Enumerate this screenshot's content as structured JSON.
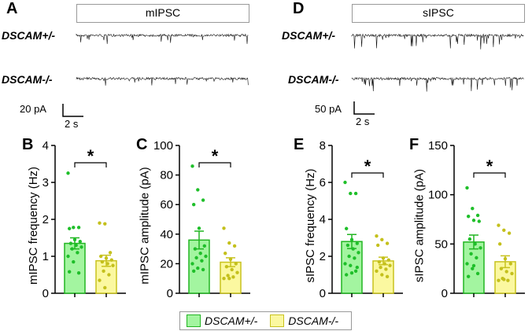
{
  "panels": {
    "A": "A",
    "D": "D",
    "B": "B",
    "C": "C",
    "E": "E",
    "F": "F"
  },
  "traces": {
    "left_title": "mIPSC",
    "right_title": "sIPSC",
    "genotype_het": "DSCAM+/-",
    "genotype_ko": "DSCAM-/-",
    "left_scale_y": "20 pA",
    "left_scale_x": "2 s",
    "right_scale_y": "50 pA",
    "right_scale_x": "2 s"
  },
  "colors": {
    "het_fill": "#a3f5a0",
    "het_stroke": "#22b522",
    "het_dot": "#1fbf2a",
    "ko_fill": "#fbf8a0",
    "ko_stroke": "#c8c21e",
    "ko_dot": "#c4c01c"
  },
  "legend": {
    "items": [
      {
        "label": "DSCAM+/-",
        "color": "#a3f5a0"
      },
      {
        "label": "DSCAM-/-",
        "color": "#fbf8a0"
      }
    ]
  },
  "chart_data": [
    {
      "type": "bar",
      "panel": "B",
      "ylabel": "mIPSC frequency (Hz)",
      "ylim": [
        0,
        4
      ],
      "ticks": [
        "0",
        "1",
        "2",
        "3",
        "4"
      ],
      "significance": "*",
      "series": [
        {
          "name": "DSCAM+/-",
          "mean": 1.35,
          "sem": 0.15,
          "points": [
            3.25,
            1.78,
            1.78,
            1.75,
            1.45,
            1.4,
            1.35,
            1.3,
            1.25,
            1.2,
            1.1,
            1.0,
            0.85,
            0.55,
            0.58
          ]
        },
        {
          "name": "DSCAM-/-",
          "mean": 0.88,
          "sem": 0.15,
          "points": [
            1.9,
            1.88,
            1.1,
            1.0,
            0.95,
            0.9,
            0.85,
            0.8,
            0.75,
            0.6,
            0.5,
            0.35,
            0.15
          ]
        }
      ]
    },
    {
      "type": "bar",
      "panel": "C",
      "ylabel": "mIPSC amplitude (pA)",
      "ylim": [
        0,
        100
      ],
      "ticks": [
        "0",
        "20",
        "40",
        "60",
        "80",
        "100"
      ],
      "significance": "*",
      "series": [
        {
          "name": "DSCAM+/-",
          "mean": 36,
          "sem": 6,
          "points": [
            86,
            70,
            63,
            60,
            44,
            32,
            30,
            27,
            25,
            24,
            22,
            20,
            17,
            16,
            15
          ]
        },
        {
          "name": "DSCAM-/-",
          "mean": 21,
          "sem": 3,
          "points": [
            44,
            34,
            32,
            27,
            23,
            20,
            18,
            16,
            14,
            12,
            11,
            10,
            10
          ]
        }
      ]
    },
    {
      "type": "bar",
      "panel": "E",
      "ylabel": "sIPSC frequency (Hz)",
      "ylim": [
        0,
        8
      ],
      "ticks": [
        "0",
        "2",
        "4",
        "6",
        "8"
      ],
      "significance": "*",
      "series": [
        {
          "name": "DSCAM+/-",
          "mean": 2.8,
          "sem": 0.38,
          "points": [
            6.0,
            5.4,
            5.4,
            3.5,
            2.9,
            2.7,
            2.6,
            2.4,
            2.2,
            2.0,
            1.9,
            1.6,
            1.5,
            1.2,
            1.0,
            1.1,
            1.4
          ]
        },
        {
          "name": "DSCAM-/-",
          "mean": 1.75,
          "sem": 0.2,
          "points": [
            3.1,
            2.9,
            2.7,
            2.6,
            1.9,
            1.8,
            1.7,
            1.6,
            1.5,
            1.4,
            1.3,
            1.2,
            1.0,
            0.9
          ]
        }
      ]
    },
    {
      "type": "bar",
      "panel": "F",
      "ylabel": "sIPSC amplitude (pA)",
      "ylim": [
        0,
        150
      ],
      "ticks": [
        "0",
        "50",
        "100",
        "150"
      ],
      "significance": "*",
      "series": [
        {
          "name": "DSCAM+/-",
          "mean": 52,
          "sem": 7,
          "points": [
            107,
            86,
            79,
            78,
            74,
            73,
            55,
            50,
            46,
            40,
            36,
            30,
            25,
            20,
            17,
            28
          ]
        },
        {
          "name": "DSCAM-/-",
          "mean": 32,
          "sem": 6,
          "points": [
            69,
            64,
            61,
            50,
            35,
            30,
            25,
            22,
            20,
            15,
            13,
            13,
            14
          ]
        }
      ]
    }
  ]
}
